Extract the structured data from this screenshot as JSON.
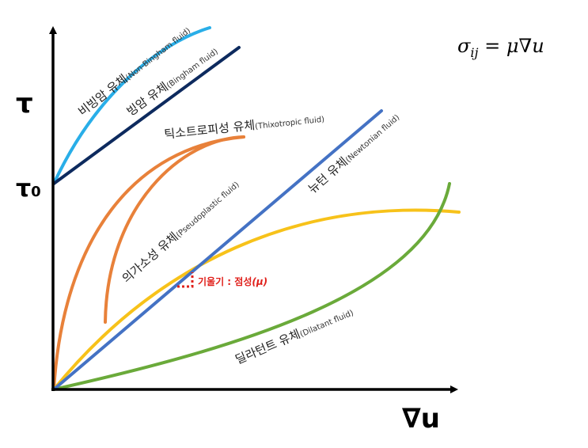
{
  "axes": {
    "y_label": "τ",
    "y_intercept_label": "τ",
    "y_intercept_sub": "0",
    "x_label": "∇u"
  },
  "formula": {
    "text": "σ",
    "sub": "ij",
    "rest": " = μ∇u"
  },
  "curves": {
    "non_bingham": {
      "name": "비빙암 유체",
      "sub": "(Non-Bingham fluid)",
      "color": "#29aee8"
    },
    "bingham": {
      "name": "빙암 유체",
      "sub": "(Bingham fluid)",
      "color": "#0d2a5e"
    },
    "thixotropic": {
      "name": "틱소트로피성 유체",
      "sub": "(Thixotropic fluid)",
      "color": "#e8813a"
    },
    "newtonian": {
      "name": "뉴턴 유체",
      "sub": "(Newtonian fluid)",
      "color": "#4472c4"
    },
    "pseudoplastic": {
      "name": "의가소성 유체",
      "sub": "(Pseudoplastic fluid)",
      "color": "#f7c21a"
    },
    "dilatant": {
      "name": "딜라턴트 유체",
      "sub": "(Dilatant fluid)",
      "color": "#6aaa3a"
    }
  },
  "slope_note": {
    "text": "기울기 : 점성",
    "symbol": "(μ)",
    "color": "#e0201b"
  }
}
